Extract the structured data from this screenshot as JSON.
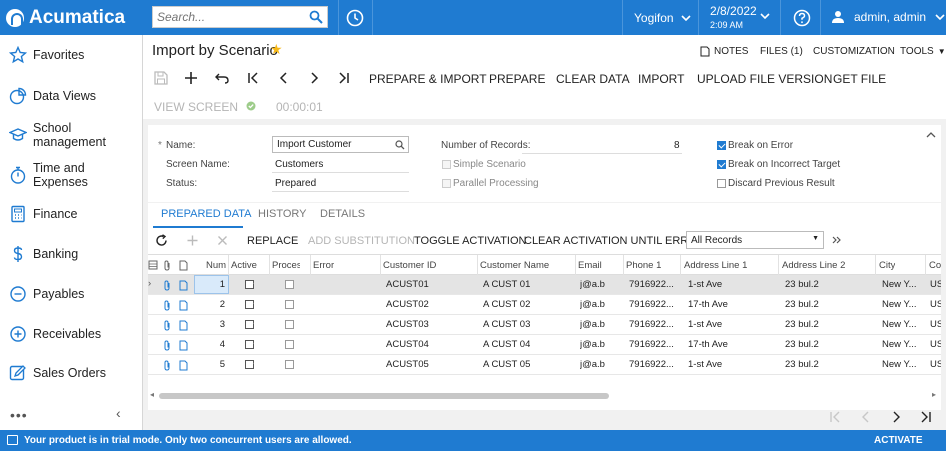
{
  "app": {
    "brand": "Acumatica",
    "accent": "#1f7bd1"
  },
  "search": {
    "placeholder": "Search..."
  },
  "header": {
    "company": "Yogifon",
    "date": "2/8/2022",
    "time": "2:09 AM",
    "user": "admin, admin"
  },
  "sidebar": {
    "items": [
      {
        "label": "Favorites",
        "icon": "star-icon"
      },
      {
        "label": "Data Views",
        "icon": "pie-chart-icon"
      },
      {
        "label": "School management",
        "icon": "graduation-cap-icon"
      },
      {
        "label": "Time and Expenses",
        "icon": "stopwatch-icon"
      },
      {
        "label": "Finance",
        "icon": "calculator-icon"
      },
      {
        "label": "Banking",
        "icon": "dollar-icon"
      },
      {
        "label": "Payables",
        "icon": "minus-circle-icon"
      },
      {
        "label": "Receivables",
        "icon": "plus-circle-icon"
      },
      {
        "label": "Sales Orders",
        "icon": "pencil-icon"
      }
    ],
    "more": "•••",
    "collapse": "‹"
  },
  "page": {
    "title": "Import by Scenario",
    "links": {
      "notes": "NOTES",
      "files": "FILES (1)",
      "customization": "CUSTOMIZATION",
      "tools": "TOOLS"
    }
  },
  "toolbar": {
    "prepare_import": "PREPARE & IMPORT",
    "prepare": "PREPARE",
    "clear_data": "CLEAR DATA",
    "import": "IMPORT",
    "upload_file_version": "UPLOAD FILE VERSION",
    "get_file": "GET FILE",
    "view_screen": "VIEW SCREEN",
    "timer": "00:00:01"
  },
  "form": {
    "name_label": "Name:",
    "name_value": "Import Customer",
    "screen_name_label": "Screen Name:",
    "screen_name_value": "Customers",
    "status_label": "Status:",
    "status_value": "Prepared",
    "records_label": "Number of Records:",
    "records_value": "8",
    "simple_scenario": "Simple Scenario",
    "parallel_processing": "Parallel Processing",
    "break_on_error": "Break on Error",
    "break_on_incorrect_target": "Break on Incorrect Target",
    "discard_previous_result": "Discard Previous Result"
  },
  "tabs": {
    "prepared_data": "PREPARED DATA",
    "history": "HISTORY",
    "details": "DETAILS"
  },
  "grid_toolbar": {
    "replace": "REPLACE",
    "add_substitution": "ADD SUBSTITUTION",
    "toggle_activation": "TOGGLE ACTIVATION",
    "clear_activation": "CLEAR ACTIVATION UNTIL ERROR",
    "filter": "All Records"
  },
  "grid": {
    "columns": {
      "num": "Num",
      "active": "Active",
      "processed": "Proces",
      "error": "Error",
      "customer_id": "Customer ID",
      "customer_name": "Customer Name",
      "email": "Email",
      "phone": "Phone 1",
      "addr1": "Address Line 1",
      "addr2": "Address Line 2",
      "city": "City",
      "country": "Cou"
    },
    "rows": [
      {
        "num": "1",
        "id": "ACUST01",
        "name": "A CUST 01",
        "email": "j@a.b",
        "phone": "7916922...",
        "addr1": "1-st Ave",
        "addr2": "23 bul.2",
        "city": "New Y...",
        "country": "US"
      },
      {
        "num": "2",
        "id": "ACUST02",
        "name": "A CUST 02",
        "email": "j@a.b",
        "phone": "7916922...",
        "addr1": "17-th Ave",
        "addr2": "23 bul.2",
        "city": "New Y...",
        "country": "US"
      },
      {
        "num": "3",
        "id": "ACUST03",
        "name": "A CUST 03",
        "email": "j@a.b",
        "phone": "7916922...",
        "addr1": "1-st Ave",
        "addr2": "23 bul.2",
        "city": "New Y...",
        "country": "US"
      },
      {
        "num": "4",
        "id": "ACUST04",
        "name": "A CUST 04",
        "email": "j@a.b",
        "phone": "7916922...",
        "addr1": "17-th Ave",
        "addr2": "23 bul.2",
        "city": "New Y...",
        "country": "US"
      },
      {
        "num": "5",
        "id": "ACUST05",
        "name": "A CUST 05",
        "email": "j@a.b",
        "phone": "7916922...",
        "addr1": "1-st Ave",
        "addr2": "23 bul.2",
        "city": "New Y...",
        "country": "US"
      }
    ]
  },
  "footer": {
    "message": "Your product is in trial mode. Only two concurrent users are allowed.",
    "activate": "ACTIVATE"
  }
}
